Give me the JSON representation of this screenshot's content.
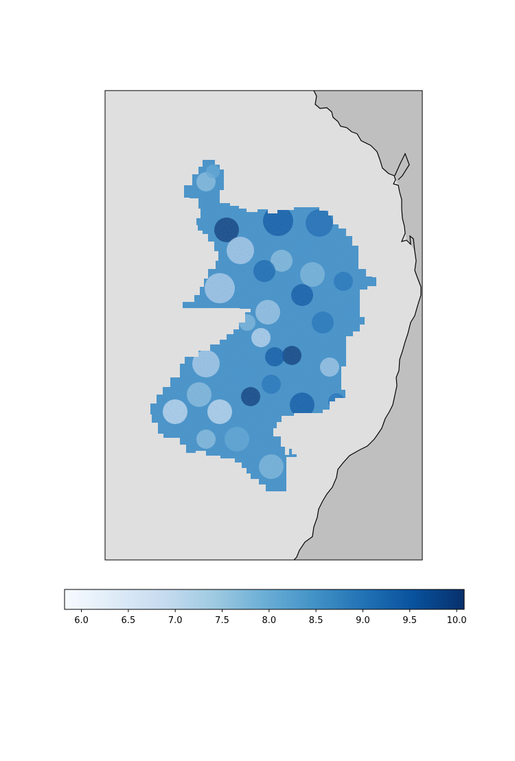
{
  "map": {
    "colors": {
      "background": "#dfdfdf",
      "land": "#bfbfbf",
      "coastline": "#000000",
      "frame": "#000000"
    }
  },
  "colorbar": {
    "colormap": "Blues",
    "range": [
      5.82,
      10.08
    ],
    "colors": [
      "#f7fbff",
      "#deebf7",
      "#c6dbef",
      "#9ecae1",
      "#6baed6",
      "#4292c6",
      "#2171b5",
      "#08519c",
      "#08306b"
    ],
    "ticks": [
      "6.0",
      "6.5",
      "7.0",
      "7.5",
      "8.0",
      "8.5",
      "9.0",
      "9.5",
      "10.0"
    ],
    "tick_values": [
      6.0,
      6.5,
      7.0,
      7.5,
      8.0,
      8.5,
      9.0,
      9.5,
      10.0
    ]
  }
}
